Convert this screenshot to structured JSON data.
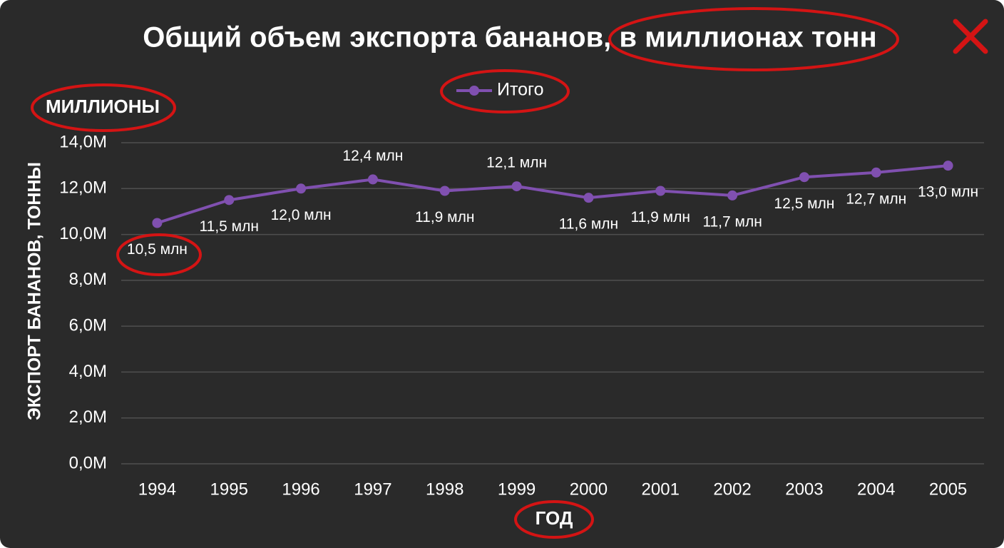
{
  "chart_data": {
    "type": "line",
    "title": "Общий объем экспорта бананов, в миллионах тонн",
    "y_units_label": "МИЛЛИОНЫ",
    "y_axis_label": "ЭКСПОРТ БАНАНОВ, ТОННЫ",
    "x_axis_label": "ГОД",
    "categories": [
      "1994",
      "1995",
      "1996",
      "1997",
      "1998",
      "1999",
      "2000",
      "2001",
      "2002",
      "2003",
      "2004",
      "2005"
    ],
    "series": [
      {
        "name": "Итого",
        "color": "#8050b0",
        "values": [
          10500000,
          11500000,
          12000000,
          12400000,
          11900000,
          12100000,
          11600000,
          11900000,
          11700000,
          12500000,
          12700000,
          13000000
        ],
        "value_labels": [
          "10,5 млн",
          "11,5 млн",
          "12,0 млн",
          "12,4 млн",
          "11,9 млн",
          "12,1 млн",
          "11,6 млн",
          "11,9 млн",
          "11,7 млн",
          "12,5 млн",
          "12,7 млн",
          "13,0 млн"
        ]
      }
    ],
    "ylim": [
      0,
      14000000
    ],
    "yticks": [
      {
        "value": 0,
        "label": "0,0M"
      },
      {
        "value": 2000000,
        "label": "2,0M"
      },
      {
        "value": 4000000,
        "label": "4,0M"
      },
      {
        "value": 6000000,
        "label": "6,0M"
      },
      {
        "value": 8000000,
        "label": "8,0M"
      },
      {
        "value": 10000000,
        "label": "10,0M"
      },
      {
        "value": 12000000,
        "label": "12,0M"
      },
      {
        "value": 14000000,
        "label": "14,0M"
      }
    ],
    "grid": true,
    "legend": "top"
  }
}
